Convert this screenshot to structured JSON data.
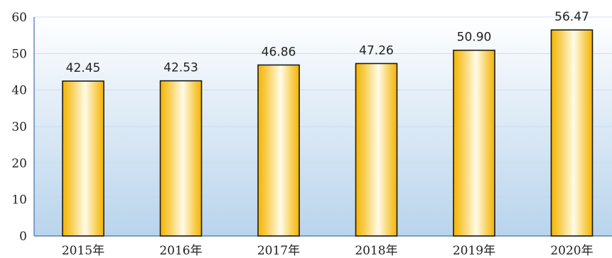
{
  "chart_data": {
    "type": "bar",
    "title": "",
    "xlabel": "",
    "ylabel": "",
    "categories": [
      "2015年",
      "2016年",
      "2017年",
      "2018年",
      "2019年",
      "2020年"
    ],
    "values": [
      42.45,
      42.53,
      46.86,
      47.26,
      50.9,
      56.47
    ],
    "value_labels": [
      "42.45",
      "42.53",
      "46.86",
      "47.26",
      "50.90",
      "56.47"
    ],
    "ylim": [
      0,
      60
    ],
    "yticks": [
      0,
      10,
      20,
      30,
      40,
      50,
      60
    ],
    "grid": true,
    "legend": "none",
    "colors": {
      "bar_edge": "#f4b400",
      "bar_center": "#fffbe8",
      "bar_outline": "#1a1a1a",
      "background_top": "#ffffff",
      "background_bottom": "#b8d4ec",
      "grid": "#c9ddf0",
      "axis": "#4a6fa5"
    }
  }
}
